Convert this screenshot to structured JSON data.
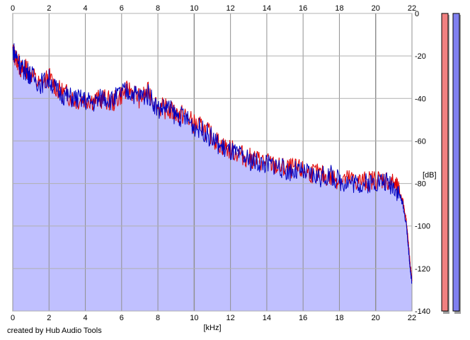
{
  "chart_data": {
    "type": "area",
    "xlabel": "[kHz]",
    "ylabel": "[dB]",
    "xlim": [
      0,
      22
    ],
    "ylim": [
      -140,
      0
    ],
    "x_ticks": [
      0,
      2,
      4,
      6,
      8,
      10,
      12,
      14,
      16,
      18,
      20,
      22
    ],
    "y_ticks": [
      0,
      -20,
      -40,
      -60,
      -80,
      -100,
      -120,
      -140
    ],
    "x_tick_labels": [
      "0",
      "2",
      "4",
      "6",
      "8",
      "10",
      "12",
      "14",
      "16",
      "18",
      "20",
      "22"
    ],
    "y_tick_labels": [
      "0",
      "-20",
      "-40",
      "-60",
      "-80",
      "-100",
      "-120",
      "-140"
    ],
    "grid": true,
    "series": [
      {
        "color": "#e00000",
        "x": [
          0,
          0.25,
          0.5,
          0.75,
          1,
          1.5,
          2,
          2.5,
          3,
          3.5,
          4,
          4.5,
          5,
          5.5,
          6,
          6.5,
          7,
          7.5,
          8,
          8.5,
          9,
          9.5,
          10,
          10.5,
          11,
          11.5,
          12,
          12.5,
          13,
          13.5,
          14,
          14.5,
          15,
          15.5,
          16,
          16.5,
          17,
          17.5,
          18,
          18.5,
          19,
          19.5,
          20,
          20.5,
          21,
          21.3,
          21.5,
          21.7,
          21.8,
          21.9,
          22
        ],
        "y": [
          -18,
          -22,
          -27,
          -26,
          -28,
          -34,
          -30,
          -36,
          -38,
          -41,
          -40,
          -41,
          -40,
          -42,
          -38,
          -36,
          -40,
          -37,
          -44,
          -45,
          -47,
          -48,
          -52,
          -54,
          -58,
          -62,
          -64,
          -66,
          -68,
          -69,
          -70,
          -72,
          -73,
          -73,
          -74,
          -75,
          -76,
          -77,
          -78,
          -78,
          -79,
          -79,
          -78,
          -78,
          -80,
          -84,
          -88,
          -98,
          -108,
          -118,
          -126
        ]
      },
      {
        "color": "#0000c0",
        "x": [
          0,
          0.25,
          0.5,
          0.75,
          1,
          1.5,
          2,
          2.5,
          3,
          3.5,
          4,
          4.5,
          5,
          5.5,
          6,
          6.5,
          7,
          7.5,
          8,
          8.5,
          9,
          9.5,
          10,
          10.5,
          11,
          11.5,
          12,
          12.5,
          13,
          13.5,
          14,
          14.5,
          15,
          15.5,
          16,
          16.5,
          17,
          17.5,
          18,
          18.5,
          19,
          19.5,
          20,
          20.5,
          21,
          21.3,
          21.5,
          21.7,
          21.8,
          21.9,
          22
        ],
        "y": [
          -17,
          -21,
          -26,
          -27,
          -29,
          -33,
          -31,
          -37,
          -39,
          -40,
          -41,
          -42,
          -39,
          -41,
          -37,
          -37,
          -39,
          -38,
          -45,
          -44,
          -48,
          -49,
          -53,
          -55,
          -59,
          -63,
          -65,
          -67,
          -69,
          -70,
          -71,
          -71,
          -74,
          -74,
          -75,
          -76,
          -77,
          -76,
          -79,
          -79,
          -80,
          -80,
          -79,
          -79,
          -81,
          -85,
          -90,
          -100,
          -110,
          -120,
          -127
        ]
      }
    ],
    "level_meters": [
      {
        "color": "#f08080"
      },
      {
        "color": "#8080f0"
      }
    ],
    "fill_color": "#c0c0ff",
    "footer": "created by Hub Audio Tools"
  }
}
